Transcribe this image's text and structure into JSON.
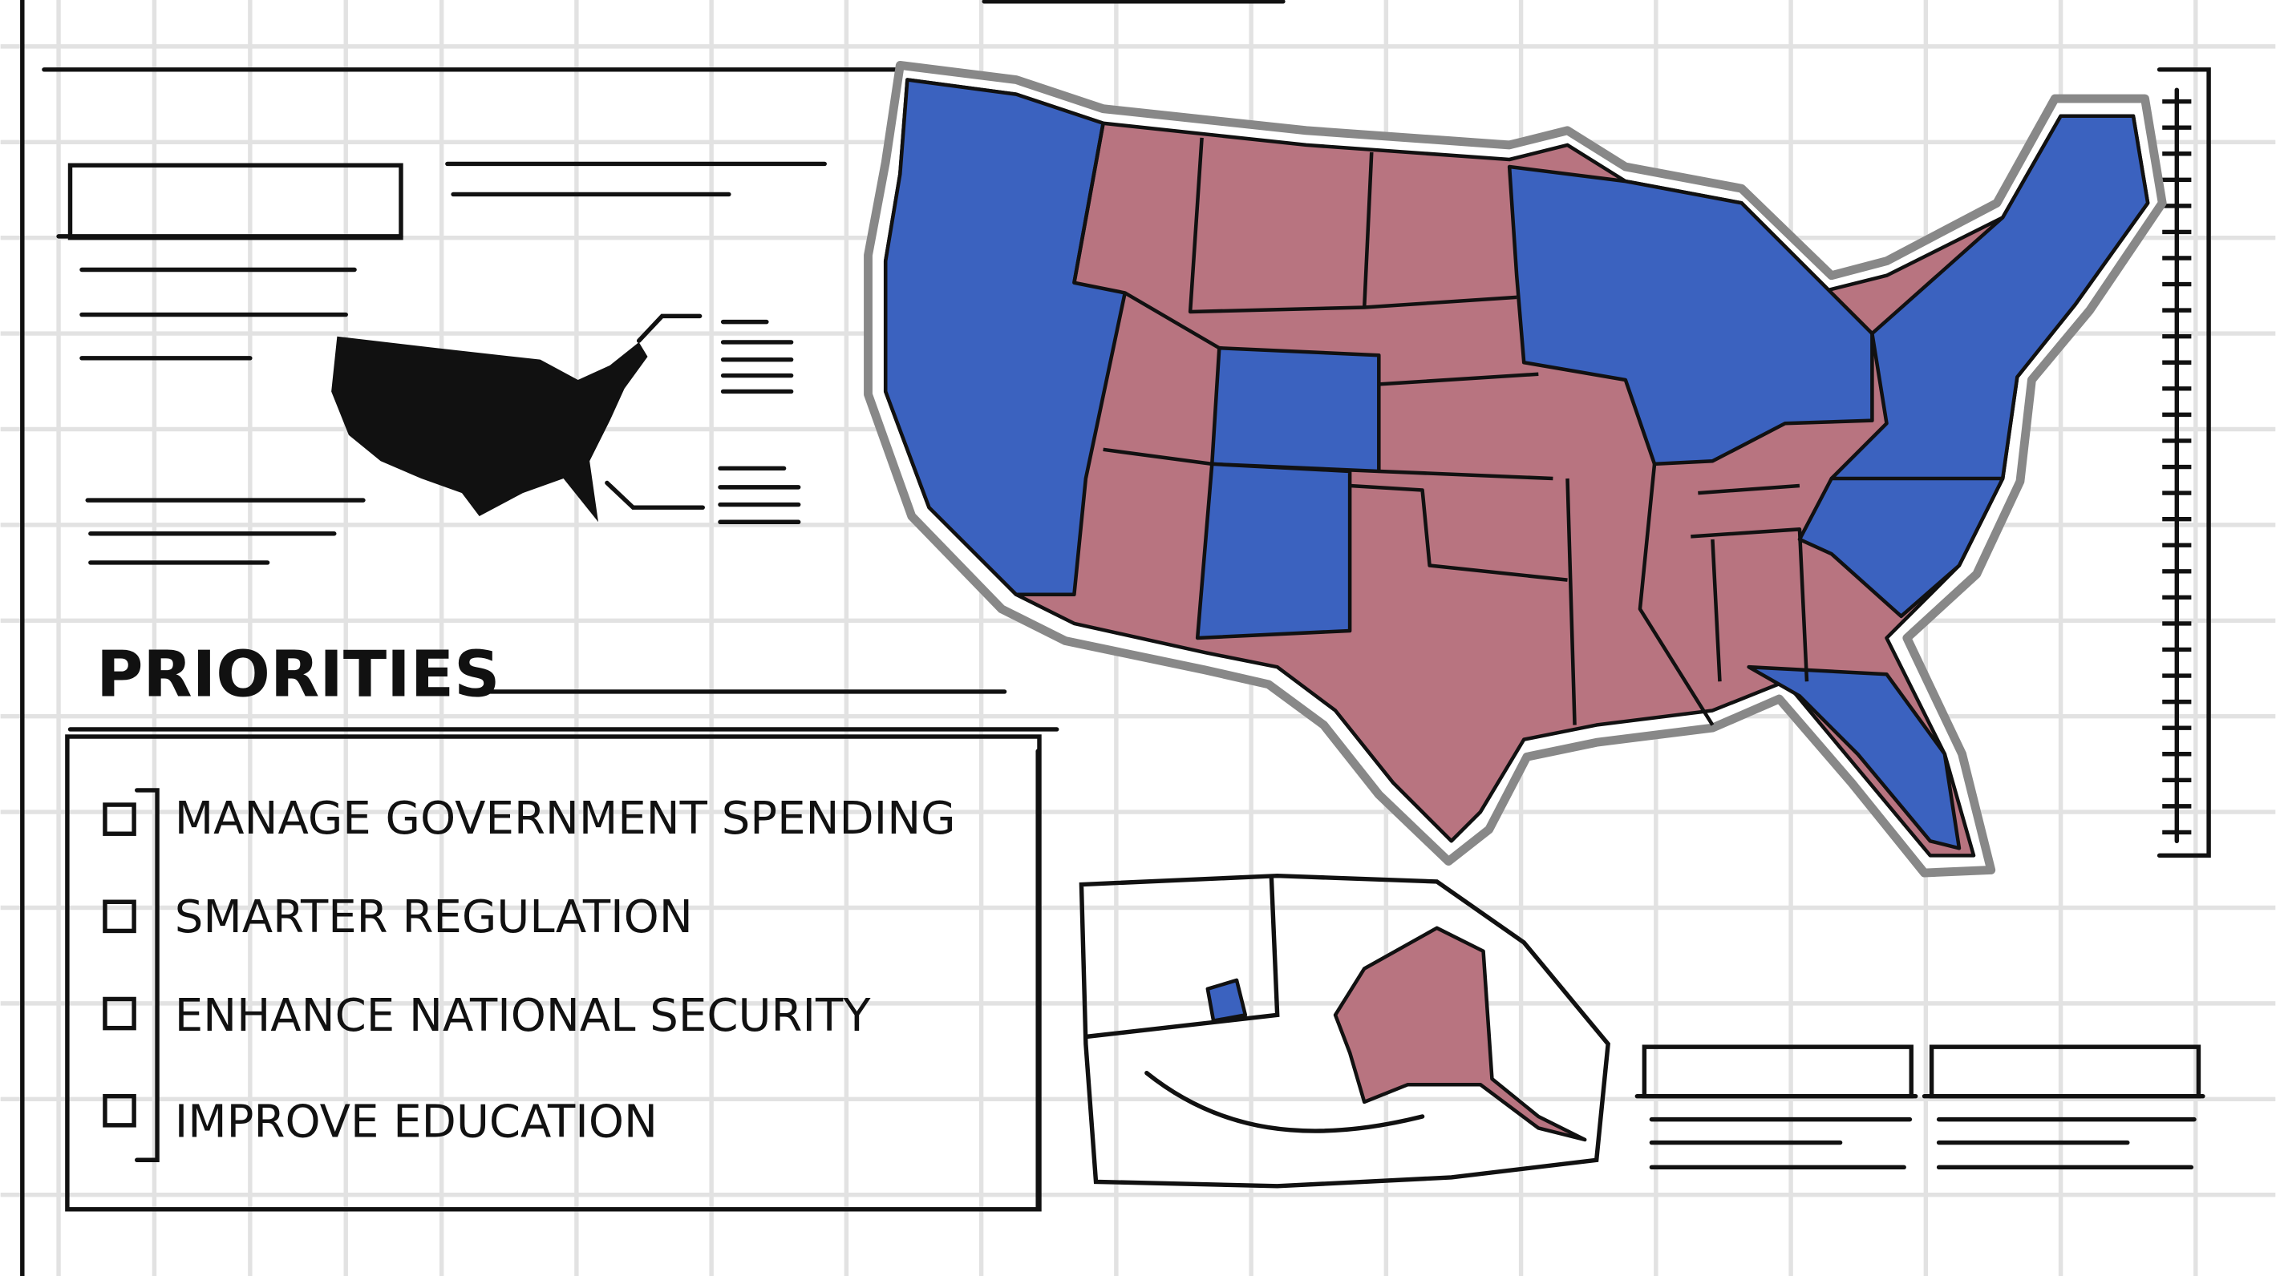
{
  "heading": "PRIORITIES",
  "priorities": [
    "MANAGE GOVERNMENT SPENDING",
    "SMARTER REGULATION",
    "ENHANCE NATIONAL SECURITY",
    "IMPROVE EDUCATION"
  ]
}
